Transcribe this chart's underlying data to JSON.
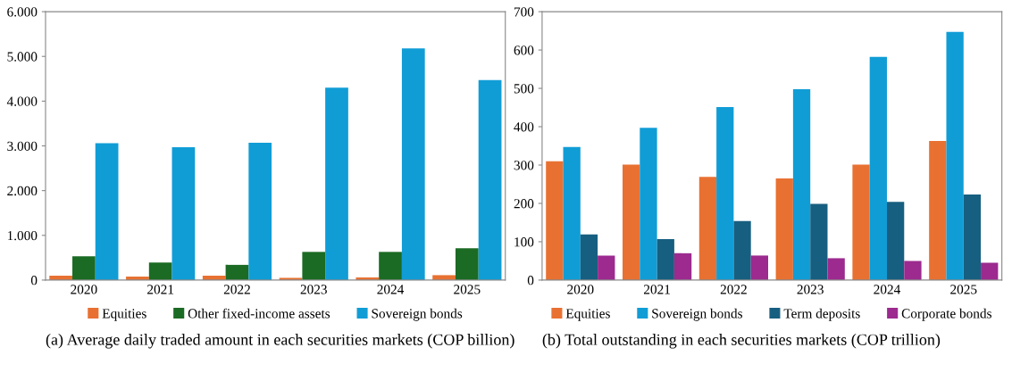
{
  "chart_data": [
    {
      "type": "bar",
      "title": "(a) Average daily traded amount in each securities markets (COP billion)",
      "categories": [
        "2020",
        "2021",
        "2022",
        "2023",
        "2024",
        "2025"
      ],
      "series": [
        {
          "name": "Equities",
          "color": "#e87132",
          "values": [
            100,
            80,
            100,
            50,
            60,
            110
          ]
        },
        {
          "name": "Other fixed-income assets",
          "color": "#1b6b24",
          "values": [
            530,
            390,
            340,
            630,
            630,
            710
          ]
        },
        {
          "name": "Sovereign bonds",
          "color": "#109dd6",
          "values": [
            3060,
            2970,
            3070,
            4300,
            5180,
            4470
          ]
        }
      ],
      "ylim": [
        0,
        6000
      ],
      "yticks": [
        {
          "value": 0,
          "label": "0"
        },
        {
          "value": 1000,
          "label": "1.000"
        },
        {
          "value": 2000,
          "label": "2.000"
        },
        {
          "value": 3000,
          "label": "3.000"
        },
        {
          "value": 4000,
          "label": "4.000"
        },
        {
          "value": 5000,
          "label": "5.000"
        },
        {
          "value": 6000,
          "label": "6.000"
        }
      ],
      "grid": false,
      "legend": "bottom"
    },
    {
      "type": "bar",
      "title": "(b) Total outstanding in each securities markets (COP trillion)",
      "categories": [
        "2020",
        "2021",
        "2022",
        "2023",
        "2024",
        "2025"
      ],
      "series": [
        {
          "name": "Equities",
          "color": "#e87132",
          "values": [
            310,
            301,
            269,
            265,
            301,
            363
          ]
        },
        {
          "name": "Sovereign bonds",
          "color": "#109dd6",
          "values": [
            347,
            397,
            451,
            498,
            582,
            647
          ]
        },
        {
          "name": "Term deposits",
          "color": "#175f80",
          "values": [
            119,
            107,
            154,
            199,
            204,
            223
          ]
        },
        {
          "name": "Corporate bonds",
          "color": "#9c2a8f",
          "values": [
            64,
            70,
            64,
            57,
            50,
            45
          ]
        }
      ],
      "ylim": [
        0,
        700
      ],
      "yticks": [
        0,
        100,
        200,
        300,
        400,
        500,
        600,
        700
      ],
      "grid": false,
      "legend": "bottom"
    }
  ]
}
